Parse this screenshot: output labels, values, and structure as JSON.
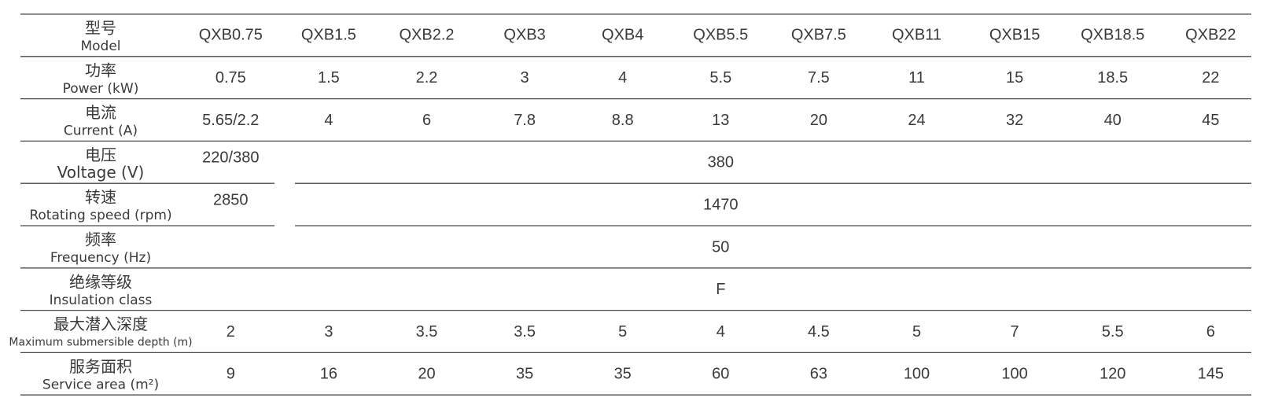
{
  "header": {
    "label_zh": "型号",
    "label_en": "Model",
    "models": [
      "QXB0.75",
      "QXB1.5",
      "QXB2.2",
      "QXB3",
      "QXB4",
      "QXB5.5",
      "QXB7.5",
      "QXB11",
      "QXB15",
      "QXB18.5",
      "QXB22"
    ]
  },
  "rows": [
    {
      "label_zh": "功率",
      "label_en": "Power (kW)",
      "values": [
        "0.75",
        "1.5",
        "2.2",
        "3",
        "4",
        "5.5",
        "7.5",
        "11",
        "15",
        "18.5",
        "22"
      ]
    },
    {
      "label_zh": "电流",
      "label_en": "Current (A)",
      "values": [
        "5.65/2.2",
        "4",
        "6",
        "7.8",
        "8.8",
        "13",
        "20",
        "24",
        "32",
        "40",
        "45"
      ]
    },
    {
      "label_zh": "电压",
      "label_en": "Voltage (V)",
      "values": [
        "220/380",
        "380"
      ]
    },
    {
      "label_zh": "转速",
      "label_en": "Rotating speed (rpm)",
      "values": [
        "2850",
        "1470"
      ]
    },
    {
      "label_zh": "频率",
      "label_en": "Frequency (Hz)",
      "values": [
        "50"
      ]
    },
    {
      "label_zh": "绝缘等级",
      "label_en": "Insulation class",
      "values": [
        "F"
      ]
    },
    {
      "label_zh": "最大潜入深度",
      "label_en": "Maximum submersible depth (m)",
      "values": [
        "2",
        "3",
        "3.5",
        "3.5",
        "5",
        "4",
        "4.5",
        "5",
        "7",
        "5.5",
        "6"
      ]
    },
    {
      "label_zh": "服务面积",
      "label_en": "Service area (m²)",
      "values": [
        "9",
        "16",
        "20",
        "35",
        "35",
        "60",
        "63",
        "100",
        "100",
        "120",
        "145"
      ]
    }
  ]
}
